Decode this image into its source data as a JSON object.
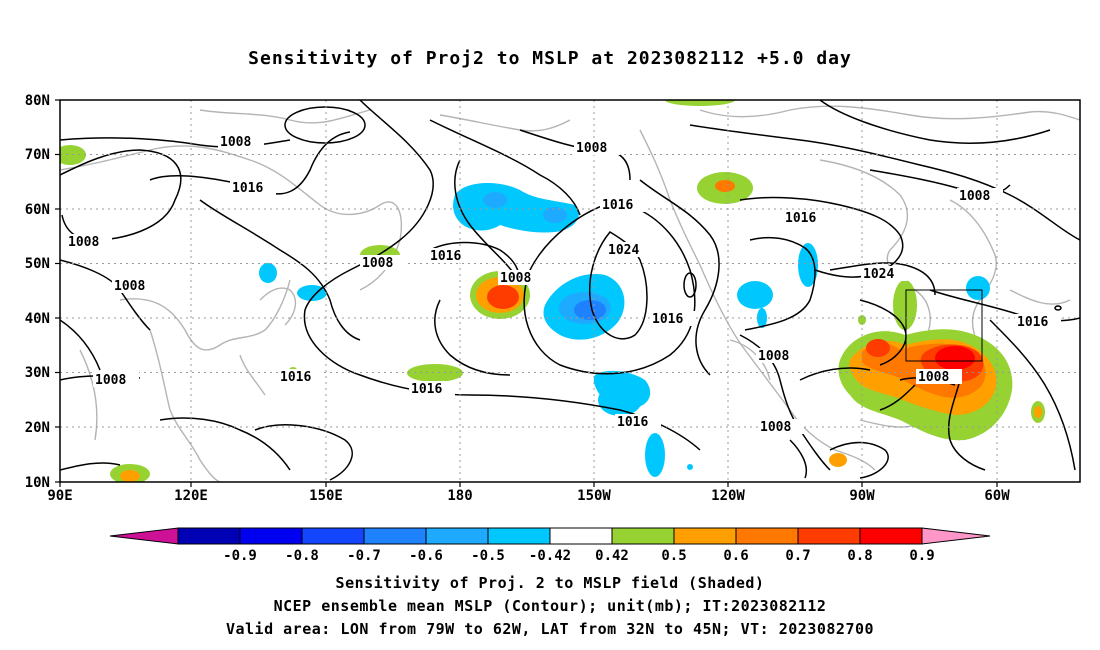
{
  "title": "Sensitivity of Proj2 to MSLP at 2023082112 +5.0 day",
  "map": {
    "lat_labels": [
      "80N",
      "70N",
      "60N",
      "50N",
      "40N",
      "30N",
      "20N",
      "10N"
    ],
    "lon_labels": [
      "90E",
      "120E",
      "150E",
      "180",
      "150W",
      "120W",
      "90W",
      "60W"
    ],
    "region": {
      "lon_min_label": "90E",
      "lon_max_label": "60W",
      "lat_min_label": "10N",
      "lat_max_label": "80N"
    },
    "valid_box": {
      "lon_from": "79W",
      "lon_to": "62W",
      "lat_from": "32N",
      "lat_to": "45N"
    },
    "contour_labels": [
      {
        "id": "c1",
        "text": "1008"
      },
      {
        "id": "c2",
        "text": "1016"
      },
      {
        "id": "c3",
        "text": "1008"
      },
      {
        "id": "c4",
        "text": "1008"
      },
      {
        "id": "c5",
        "text": "1008"
      },
      {
        "id": "c6",
        "text": "1016"
      },
      {
        "id": "c7",
        "text": "1008"
      },
      {
        "id": "c8",
        "text": "1016"
      },
      {
        "id": "c9",
        "text": "1008"
      },
      {
        "id": "c10",
        "text": "1008"
      },
      {
        "id": "c11",
        "text": "1016"
      },
      {
        "id": "c12",
        "text": "1024"
      },
      {
        "id": "c13",
        "text": "1016"
      },
      {
        "id": "c14",
        "text": "1016"
      },
      {
        "id": "c15",
        "text": "1016"
      },
      {
        "id": "c16",
        "text": "1016"
      },
      {
        "id": "c17",
        "text": "1008"
      },
      {
        "id": "c18",
        "text": "1024"
      },
      {
        "id": "c19",
        "text": "1008"
      },
      {
        "id": "c20",
        "text": "1016"
      },
      {
        "id": "c21",
        "text": "1008"
      },
      {
        "id": "c22",
        "text": "1008"
      }
    ]
  },
  "colorbar": {
    "labels": [
      "-0.9",
      "-0.8",
      "-0.7",
      "-0.6",
      "-0.5",
      "-0.42",
      "0.42",
      "0.5",
      "0.6",
      "0.7",
      "0.8",
      "0.9"
    ],
    "colors": [
      "#cc1196",
      "#0000b4",
      "#0000f0",
      "#1446ff",
      "#1e82ff",
      "#1eaaff",
      "#00c8ff",
      "#ffffff",
      "#96d232",
      "#ffa000",
      "#ff7800",
      "#ff3c00",
      "#ff0000",
      "#ff96c8"
    ]
  },
  "footer": {
    "line1": "Sensitivity of Proj. 2 to MSLP field (Shaded)",
    "line2": "NCEP ensemble mean MSLP (Contour); unit(mb); IT:2023082112",
    "line3": "Valid area: LON from 79W to 62W, LAT from 32N to 45N; VT: 2023082700"
  }
}
